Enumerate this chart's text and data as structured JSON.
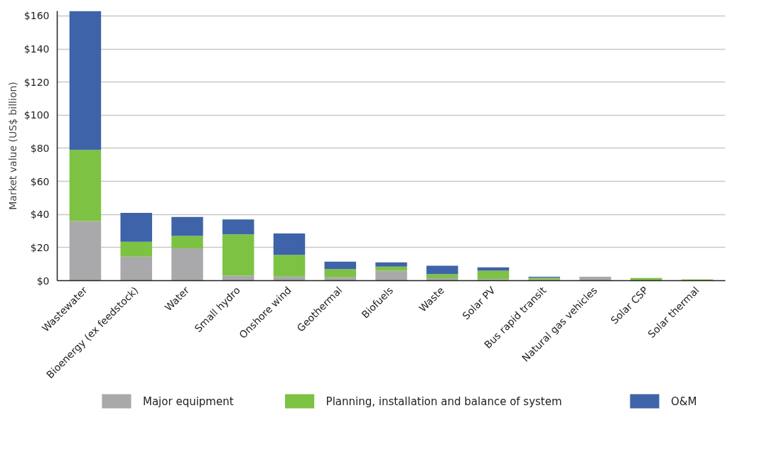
{
  "chart_data": {
    "type": "bar",
    "stacked": true,
    "ylabel": "Market value (US$ billion)",
    "categories": [
      "Wastewater",
      "Bioenergy (ex feedstock)",
      "Water",
      "Small hydro",
      "Onshore wind",
      "Geothermal",
      "Biofuels",
      "Waste",
      "Solar PV",
      "Bus rapid transit",
      "Natural gas vehicles",
      "Solar CSP",
      "Solar thermal"
    ],
    "series": [
      {
        "name": "Major equipment",
        "color": "#a9a9ab",
        "values": [
          36,
          14.5,
          19.5,
          3,
          2.5,
          2,
          6,
          1.5,
          1,
          0.8,
          2.4,
          0,
          0
        ]
      },
      {
        "name": "Planning, installation and balance of system",
        "color": "#7dc243",
        "values": [
          43,
          9,
          7.5,
          25,
          13,
          5,
          2.5,
          2.5,
          5,
          1,
          0,
          1.6,
          0.8
        ]
      },
      {
        "name": "O&M",
        "color": "#3f63a8",
        "values": [
          84,
          17.5,
          11.5,
          9,
          13,
          4.5,
          2.5,
          5,
          2,
          0.6,
          0,
          0,
          0
        ]
      }
    ],
    "ylim": [
      0,
      163
    ],
    "yticks": [
      {
        "value": 0,
        "label": "$0"
      },
      {
        "value": 20,
        "label": "$20"
      },
      {
        "value": 40,
        "label": "$40"
      },
      {
        "value": 60,
        "label": "$60"
      },
      {
        "value": 80,
        "label": "$80"
      },
      {
        "value": 100,
        "label": "$100"
      },
      {
        "value": 120,
        "label": "$120"
      },
      {
        "value": 140,
        "label": "$140"
      },
      {
        "value": 160,
        "label": "$160"
      }
    ],
    "grid": "y",
    "legend": "bottom"
  }
}
